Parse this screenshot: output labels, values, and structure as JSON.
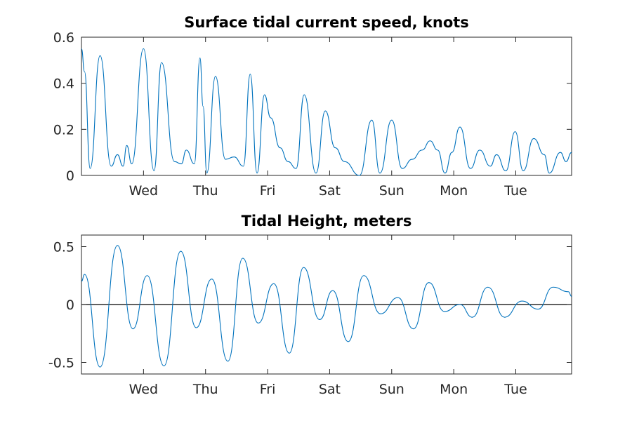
{
  "colors": {
    "series": "#0072bd",
    "zero_line": "#000000",
    "axes": "#262626"
  },
  "chart_data": [
    {
      "type": "line",
      "title": "Surface tidal current speed, knots",
      "xlabel": "",
      "ylabel": "",
      "xlim": [
        0,
        7.9
      ],
      "ylim": [
        0,
        0.6
      ],
      "xticks": [
        {
          "value": 1,
          "label": "Wed"
        },
        {
          "value": 2,
          "label": "Thu"
        },
        {
          "value": 3,
          "label": "Fri"
        },
        {
          "value": 4,
          "label": "Sat"
        },
        {
          "value": 5,
          "label": "Sun"
        },
        {
          "value": 6,
          "label": "Mon"
        },
        {
          "value": 7,
          "label": "Tue"
        }
      ],
      "yticks": [
        {
          "value": 0,
          "label": "0"
        },
        {
          "value": 0.2,
          "label": "0.2"
        },
        {
          "value": 0.4,
          "label": "0.4"
        },
        {
          "value": 0.6,
          "label": "0.6"
        }
      ],
      "grid": false,
      "series": [
        {
          "x": [
            0,
            0.05,
            0.14,
            0.3,
            0.48,
            0.58,
            0.67,
            0.73,
            0.81,
            1.0,
            1.17,
            1.29,
            1.5,
            1.61,
            1.69,
            1.82,
            1.91,
            1.96,
            2.02,
            2.16,
            2.32,
            2.46,
            2.61,
            2.72,
            2.83,
            2.95,
            3.05,
            3.2,
            3.33,
            3.46,
            3.59,
            3.78,
            3.93,
            4.09,
            4.24,
            4.48,
            4.68,
            4.81,
            5.0,
            5.17,
            5.33,
            5.49,
            5.62,
            5.74,
            5.86,
            5.97,
            6.1,
            6.27,
            6.42,
            6.59,
            6.69,
            6.84,
            6.99,
            7.12,
            7.29,
            7.46,
            7.54,
            7.72,
            7.81,
            7.9
          ],
          "values": [
            0.55,
            0.45,
            0.03,
            0.52,
            0.04,
            0.09,
            0.04,
            0.13,
            0.05,
            0.55,
            0.02,
            0.49,
            0.06,
            0.05,
            0.11,
            0.05,
            0.51,
            0.3,
            0.01,
            0.43,
            0.07,
            0.08,
            0.04,
            0.44,
            0.01,
            0.35,
            0.25,
            0.12,
            0.06,
            0.03,
            0.35,
            0.01,
            0.28,
            0.12,
            0.06,
            0.0,
            0.24,
            0.01,
            0.24,
            0.03,
            0.07,
            0.11,
            0.15,
            0.11,
            0.01,
            0.1,
            0.21,
            0.03,
            0.11,
            0.04,
            0.09,
            0.02,
            0.19,
            0.02,
            0.16,
            0.09,
            0.01,
            0.1,
            0.06,
            0.1
          ]
        }
      ]
    },
    {
      "type": "line",
      "title": "Tidal Height, meters",
      "xlabel": "",
      "ylabel": "",
      "xlim": [
        0,
        7.9
      ],
      "ylim": [
        -0.6,
        0.6
      ],
      "xticks": [
        {
          "value": 1,
          "label": "Wed"
        },
        {
          "value": 2,
          "label": "Thu"
        },
        {
          "value": 3,
          "label": "Fri"
        },
        {
          "value": 4,
          "label": "Sat"
        },
        {
          "value": 5,
          "label": "Sun"
        },
        {
          "value": 6,
          "label": "Mon"
        },
        {
          "value": 7,
          "label": "Tue"
        }
      ],
      "yticks": [
        {
          "value": -0.5,
          "label": "-0.5"
        },
        {
          "value": 0,
          "label": "0"
        },
        {
          "value": 0.5,
          "label": "0.5"
        }
      ],
      "zero_line": true,
      "grid": false,
      "series": [
        {
          "x": [
            0,
            0.05,
            0.3,
            0.58,
            0.83,
            1.06,
            1.33,
            1.6,
            1.85,
            2.1,
            2.36,
            2.6,
            2.85,
            3.1,
            3.35,
            3.58,
            3.84,
            4.05,
            4.3,
            4.55,
            4.82,
            5.1,
            5.35,
            5.6,
            5.85,
            6.1,
            6.3,
            6.55,
            6.82,
            7.1,
            7.36,
            7.6,
            7.85,
            7.9
          ],
          "values": [
            0.2,
            0.26,
            -0.54,
            0.51,
            -0.21,
            0.25,
            -0.53,
            0.46,
            -0.2,
            0.22,
            -0.49,
            0.4,
            -0.16,
            0.18,
            -0.42,
            0.32,
            -0.13,
            0.12,
            -0.32,
            0.25,
            -0.08,
            0.06,
            -0.21,
            0.19,
            -0.06,
            0.0,
            -0.11,
            0.15,
            -0.11,
            0.03,
            -0.04,
            0.15,
            0.11,
            0.07
          ]
        }
      ]
    }
  ]
}
